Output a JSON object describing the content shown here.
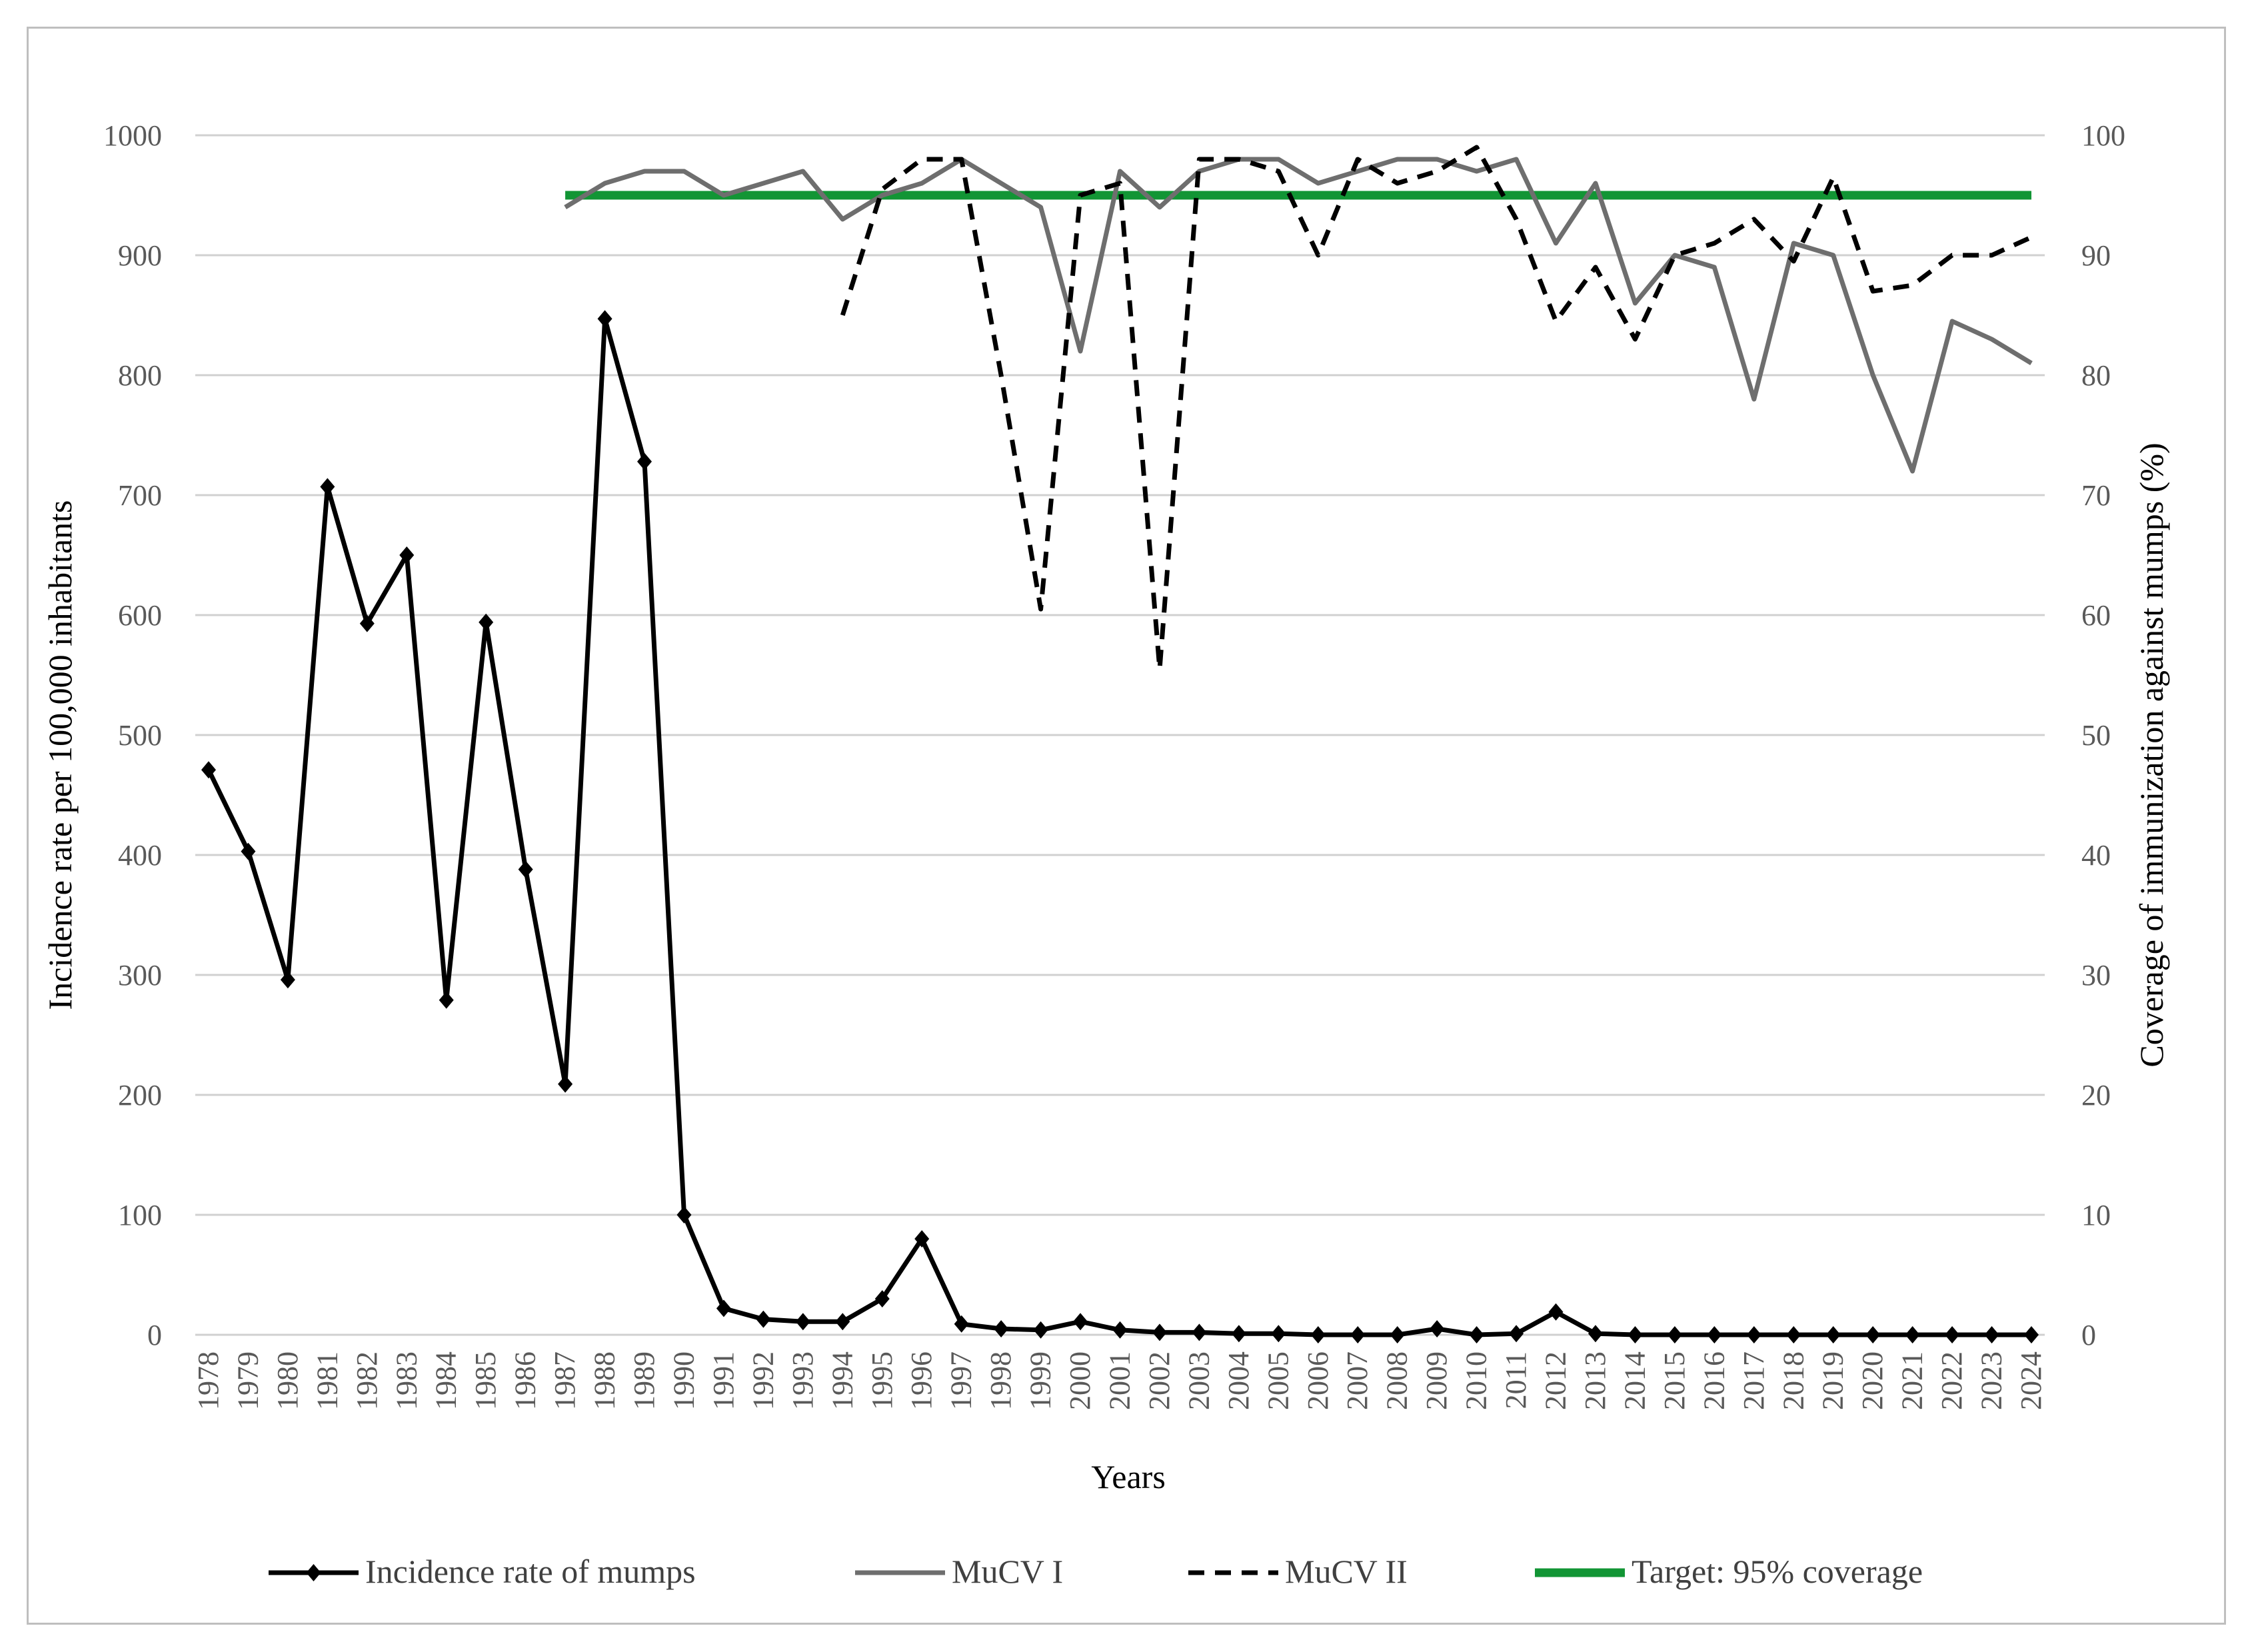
{
  "chart_data": {
    "type": "line",
    "title": "",
    "xlabel": "Years",
    "ylabel_left": "Incidence rate per 100,000 inhabitants",
    "ylabel_right": "Coverage of immunization against mumps (%)",
    "ylim_left": [
      0,
      1000
    ],
    "ylim_right": [
      0,
      100
    ],
    "yticks_left": [
      "0",
      "100",
      "200",
      "300",
      "400",
      "500",
      "600",
      "700",
      "800",
      "900",
      "1000"
    ],
    "yticks_right": [
      "0",
      "10",
      "20",
      "30",
      "40",
      "50",
      "60",
      "70",
      "80",
      "90",
      "100"
    ],
    "grid": true,
    "legend_position": "bottom",
    "categories": [
      "1978",
      "1979",
      "1980",
      "1981",
      "1982",
      "1983",
      "1984",
      "1985",
      "1986",
      "1987",
      "1988",
      "1989",
      "1990",
      "1991",
      "1992",
      "1993",
      "1994",
      "1995",
      "1996",
      "1997",
      "1998",
      "1999",
      "2000",
      "2001",
      "2002",
      "2003",
      "2004",
      "2005",
      "2006",
      "2007",
      "2008",
      "2009",
      "2010",
      "2011",
      "2012",
      "2013",
      "2014",
      "2015",
      "2016",
      "2017",
      "2018",
      "2019",
      "2020",
      "2021",
      "2022",
      "2023",
      "2024"
    ],
    "series": [
      {
        "name": "Incidence rate of mumps",
        "axis": "left",
        "color": "#000000",
        "style": "solid-diamond",
        "values": [
          471,
          403,
          296,
          707,
          593,
          650,
          279,
          594,
          388,
          209,
          847,
          728,
          100,
          22,
          13,
          11,
          11,
          30,
          80,
          9,
          5,
          4,
          11,
          4,
          2,
          2,
          1,
          1,
          0,
          0,
          0,
          5,
          0,
          1,
          19,
          1,
          0,
          0,
          0,
          0,
          0,
          0,
          0,
          0,
          0,
          0,
          0
        ]
      },
      {
        "name": "MuCV I",
        "axis": "right",
        "color": "#6e6e6e",
        "style": "solid",
        "values": [
          null,
          null,
          null,
          null,
          null,
          null,
          null,
          null,
          null,
          94,
          96,
          97,
          97,
          95,
          96,
          97,
          93,
          95,
          96,
          98,
          96,
          94,
          82,
          97,
          94,
          97,
          98,
          98,
          96,
          97,
          98,
          98,
          97,
          98,
          91,
          96,
          86,
          90,
          89,
          78,
          91,
          90,
          80,
          72,
          84.5,
          83,
          81
        ]
      },
      {
        "name": "MuCV II",
        "axis": "right",
        "color": "#000000",
        "style": "dashed",
        "values": [
          null,
          null,
          null,
          null,
          null,
          null,
          null,
          null,
          null,
          null,
          null,
          null,
          null,
          null,
          null,
          null,
          85,
          95.5,
          98,
          98,
          80,
          60.5,
          95,
          96,
          55.5,
          98,
          98,
          97,
          90,
          98,
          96,
          97,
          99,
          93,
          84.5,
          89,
          83,
          90,
          91,
          93,
          89.5,
          96.5,
          87,
          87.5,
          90,
          90,
          91.5
        ]
      },
      {
        "name": "Target: 95% coverage",
        "axis": "right",
        "color": "#129535",
        "style": "solid-thick",
        "values": [
          null,
          null,
          null,
          null,
          null,
          null,
          null,
          null,
          null,
          95,
          95,
          95,
          95,
          95,
          95,
          95,
          95,
          95,
          95,
          95,
          95,
          95,
          95,
          95,
          95,
          95,
          95,
          95,
          95,
          95,
          95,
          95,
          95,
          95,
          95,
          95,
          95,
          95,
          95,
          95,
          95,
          95,
          95,
          95,
          95,
          95,
          95
        ]
      }
    ]
  }
}
